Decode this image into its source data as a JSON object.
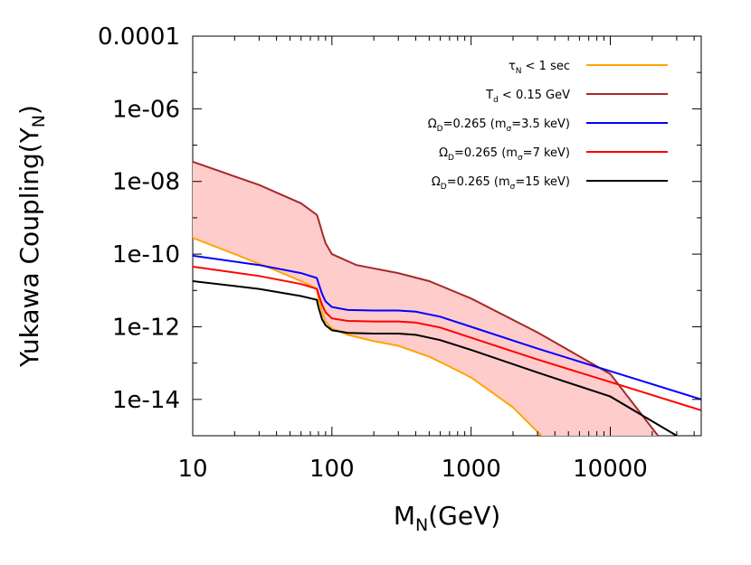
{
  "chart_data": {
    "type": "line",
    "xscale": "log",
    "yscale": "log",
    "xlim": [
      10,
      45000
    ],
    "ylim": [
      1e-15,
      0.0001
    ],
    "xlabel": {
      "main": "M",
      "sub": "N",
      "post": "(GeV)"
    },
    "ylabel": {
      "main": "Yukawa Coupling(Y",
      "sub": "N",
      "post": ")"
    },
    "xticks": [
      {
        "value": 10,
        "label": "10"
      },
      {
        "value": 100,
        "label": "100"
      },
      {
        "value": 1000,
        "label": "1000"
      },
      {
        "value": 10000,
        "label": "10000"
      }
    ],
    "yticks": [
      {
        "value": 0.0001,
        "label": "0.0001"
      },
      {
        "value": 1e-06,
        "label": "1e-06"
      },
      {
        "value": 1e-08,
        "label": "1e-08"
      },
      {
        "value": 1e-10,
        "label": "1e-10"
      },
      {
        "value": 1e-12,
        "label": "1e-12"
      },
      {
        "value": 1e-14,
        "label": "1e-14"
      }
    ],
    "shaded_region": {
      "fill": "#ffcccc",
      "description": "between lower and upper bound curves",
      "upper_series": "T_d",
      "lower_series": "tau_N"
    },
    "series": [
      {
        "id": "tau_N",
        "name": {
          "pre": "τ",
          "sub": "N",
          "post": " < 1 sec",
          "sup": ""
        },
        "color": "#ffa500",
        "x": [
          10,
          20,
          40,
          60,
          78,
          80,
          85,
          90,
          100,
          130,
          200,
          300,
          500,
          700,
          1000,
          2000,
          3200
        ],
        "y": [
          2.8e-10,
          1e-10,
          3.5e-11,
          1.8e-11,
          1.1e-11,
          6e-12,
          2.5e-12,
          1.4e-12,
          9e-13,
          6e-13,
          4e-13,
          3e-13,
          1.5e-13,
          8e-14,
          4e-14,
          6e-15,
          1e-15
        ]
      },
      {
        "id": "T_d",
        "name": {
          "pre": "T",
          "sub": "d",
          "post": " < 0.15 GeV",
          "sup": ""
        },
        "color": "#a52a2a",
        "x": [
          10,
          30,
          60,
          78,
          80,
          85,
          90,
          100,
          150,
          300,
          500,
          1000,
          3000,
          10000,
          22000
        ],
        "y": [
          3.5e-08,
          8e-09,
          2.5e-09,
          1.2e-09,
          9e-10,
          4e-10,
          2e-10,
          1e-10,
          5e-11,
          3e-11,
          1.8e-11,
          6e-12,
          7e-13,
          5e-14,
          1e-15
        ]
      },
      {
        "id": "omega_35",
        "name": {
          "pre": "Ω",
          "sub": "D",
          "post": "=0.265 (m",
          "sup": "σ",
          "tail": "=3.5 keV)"
        },
        "color": "#0000ff",
        "x": [
          10,
          30,
          60,
          78,
          80,
          85,
          90,
          100,
          130,
          200,
          300,
          400,
          600,
          1000,
          3000,
          10000,
          45000
        ],
        "y": [
          9e-11,
          5e-11,
          3e-11,
          2.2e-11,
          1.6e-11,
          8e-12,
          5e-12,
          3.5e-12,
          2.9e-12,
          2.8e-12,
          2.8e-12,
          2.6e-12,
          1.9e-12,
          1e-12,
          2.5e-13,
          6e-14,
          1e-14
        ]
      },
      {
        "id": "omega_7",
        "name": {
          "pre": "Ω",
          "sub": "D",
          "post": "=0.265 (m",
          "sup": "σ",
          "tail": "=7 keV)"
        },
        "color": "#ff0000",
        "x": [
          10,
          30,
          60,
          78,
          80,
          85,
          90,
          100,
          130,
          200,
          300,
          400,
          600,
          1000,
          3000,
          10000,
          45000
        ],
        "y": [
          4.5e-11,
          2.5e-11,
          1.5e-11,
          1.1e-11,
          8e-12,
          4e-12,
          2.5e-12,
          1.7e-12,
          1.45e-12,
          1.4e-12,
          1.4e-12,
          1.3e-12,
          9.5e-13,
          5e-13,
          1.25e-13,
          3e-14,
          5e-15
        ]
      },
      {
        "id": "omega_15",
        "name": {
          "pre": "Ω",
          "sub": "D",
          "post": "=0.265 (m",
          "sup": "σ",
          "tail": "=15 keV)"
        },
        "color": "#000000",
        "x": [
          10,
          30,
          60,
          78,
          80,
          85,
          90,
          100,
          130,
          200,
          300,
          400,
          600,
          1000,
          3000,
          10000,
          30000
        ],
        "y": [
          1.8e-11,
          1.1e-11,
          7e-12,
          5.5e-12,
          3.5e-12,
          1.6e-12,
          1.1e-12,
          8e-13,
          6.8e-13,
          6.5e-13,
          6.5e-13,
          6e-13,
          4.3e-13,
          2.3e-13,
          5.5e-14,
          1.2e-14,
          1e-15
        ]
      }
    ]
  }
}
